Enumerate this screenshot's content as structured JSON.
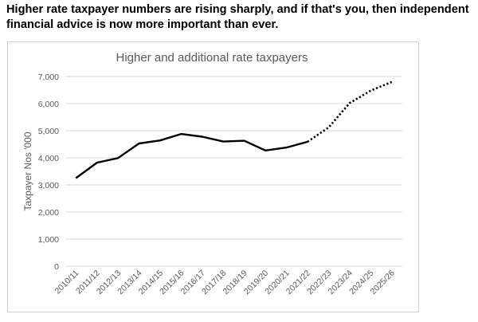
{
  "headline": {
    "line1": "Higher rate taxpayer numbers are rising sharply, and if that's you, then independent",
    "line2": "financial advice is now more important than ever."
  },
  "chart_data": {
    "type": "line",
    "title": "Higher and additional rate taxpayers",
    "ylabel": "Taxpayer Nos '000",
    "xlabel": "",
    "ylim": [
      0,
      7000
    ],
    "yticks": [
      "0",
      "1,000",
      "2,000",
      "3,000",
      "4,000",
      "5,000",
      "6,000",
      "7,000"
    ],
    "ytick_values": [
      0,
      1000,
      2000,
      3000,
      4000,
      5000,
      6000,
      7000
    ],
    "grid": true,
    "legend": "none",
    "categories": [
      "2010/11",
      "2011/12",
      "2012/13",
      "2013/14",
      "2014/15",
      "2015/16",
      "2016/17",
      "2017/18",
      "2018/19",
      "2019/20",
      "2020/21",
      "2021/22",
      "2022/23",
      "2023/24",
      "2024/25",
      "2025/26"
    ],
    "series": [
      {
        "style": "solid",
        "color": "#000000",
        "values": [
          3250,
          3820,
          3990,
          4530,
          4640,
          4880,
          4780,
          4600,
          4630,
          4270,
          4380,
          4590,
          null,
          null,
          null,
          null
        ]
      },
      {
        "style": "dotted",
        "color": "#000000",
        "values": [
          null,
          null,
          null,
          null,
          null,
          null,
          null,
          null,
          null,
          null,
          null,
          4590,
          5120,
          6020,
          6480,
          6800
        ]
      }
    ]
  }
}
